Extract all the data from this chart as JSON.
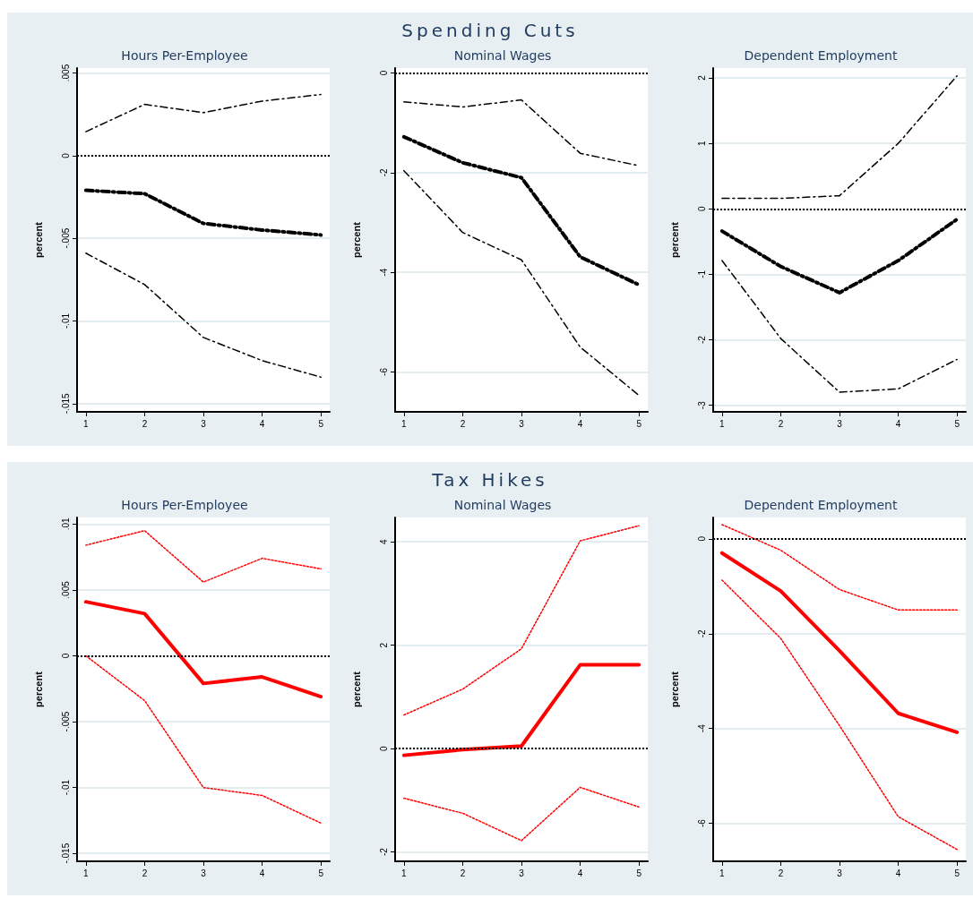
{
  "chart_data": [
    {
      "type": "line",
      "title": "Hours Per-Employee",
      "ylabel": "percent",
      "x": [
        1,
        2,
        3,
        4,
        5
      ],
      "xlim": [
        0.85,
        5.15
      ],
      "xticks": [
        1,
        2,
        3,
        4,
        5
      ],
      "ylim": [
        -0.0155,
        0.0053
      ],
      "yticks": [
        {
          "value": 0.005,
          "label": ".005"
        },
        0,
        {
          "value": -0.005,
          "label": "-.005"
        },
        {
          "value": -0.01,
          "label": "-.01"
        },
        {
          "value": -0.015,
          "label": "-.015"
        }
      ],
      "grid": "y",
      "marker": "none",
      "series": [
        {
          "color": "#000000",
          "line_style": "dashed",
          "values": [
            0.00145,
            0.0031,
            0.0026,
            0.0033,
            0.0037
          ]
        },
        {
          "color": "#000000",
          "line_style": "dashed",
          "values": [
            -0.0021,
            -0.0023,
            -0.0041,
            -0.0045,
            -0.0048
          ]
        },
        {
          "color": "#000000",
          "line_style": "dashed",
          "values": [
            -0.0059,
            -0.0078,
            -0.011,
            -0.0124,
            -0.0134
          ]
        }
      ],
      "ref_lines": [
        {
          "axis": "y",
          "value": 0,
          "color": "#000000",
          "line_style": "dotted"
        }
      ]
    },
    {
      "type": "line",
      "title": "Nominal Wages",
      "subtitle": "Spending Cuts",
      "ylabel": "percent",
      "x": [
        1,
        2,
        3,
        4,
        5
      ],
      "xlim": [
        0.85,
        5.15
      ],
      "xticks": [
        1,
        2,
        3,
        4,
        5
      ],
      "ylim": [
        -6.8,
        0.1
      ],
      "yticks": [
        0,
        -2,
        -4,
        -6
      ],
      "grid": "y",
      "marker": "none",
      "series": [
        {
          "color": "#000000",
          "line_style": "dashed",
          "values": [
            -0.58,
            -0.68,
            -0.54,
            -1.61,
            -1.86
          ]
        },
        {
          "color": "#000000",
          "line_style": "dashed",
          "values": [
            -1.28,
            -1.8,
            -2.1,
            -3.69,
            -4.25
          ]
        },
        {
          "color": "#000000",
          "line_style": "dashed",
          "values": [
            -1.96,
            -3.2,
            -3.75,
            -5.5,
            -6.47
          ]
        }
      ],
      "ref_lines": [
        {
          "axis": "y",
          "value": 0,
          "color": "#000000",
          "line_style": "dotted"
        }
      ]
    },
    {
      "type": "line",
      "title": "Dependent Employment",
      "ylabel": "percent",
      "x": [
        1,
        2,
        3,
        4,
        5
      ],
      "xlim": [
        0.85,
        5.15
      ],
      "xticks": [
        1,
        2,
        3,
        4,
        5
      ],
      "ylim": [
        -3.1,
        2.15
      ],
      "yticks": [
        2,
        1,
        0,
        -1,
        -2,
        -3
      ],
      "grid": "y",
      "marker": "none",
      "series": [
        {
          "color": "#000000",
          "line_style": "dashed",
          "values": [
            0.16,
            0.16,
            0.2,
            1.0,
            2.03
          ]
        },
        {
          "color": "#000000",
          "line_style": "dashed",
          "values": [
            -0.34,
            -0.88,
            -1.28,
            -0.79,
            -0.16
          ]
        },
        {
          "color": "#000000",
          "line_style": "dashed",
          "values": [
            -0.79,
            -1.98,
            -2.8,
            -2.75,
            -2.3
          ]
        }
      ],
      "ref_lines": [
        {
          "axis": "y",
          "value": 0,
          "color": "#000000",
          "line_style": "dotted"
        }
      ]
    },
    {
      "type": "line",
      "title": "Hours Per-Employee",
      "ylabel": "percent",
      "x": [
        1,
        2,
        3,
        4,
        5
      ],
      "xlim": [
        0.85,
        5.15
      ],
      "xticks": [
        1,
        2,
        3,
        4,
        5
      ],
      "ylim": [
        -0.0156,
        0.0105
      ],
      "yticks": [
        {
          "value": 0.01,
          "label": ".01"
        },
        {
          "value": 0.005,
          "label": ".005"
        },
        0,
        {
          "value": -0.005,
          "label": "-.005"
        },
        {
          "value": -0.01,
          "label": "-.01"
        },
        {
          "value": -0.015,
          "label": "-.015"
        }
      ],
      "grid": "y",
      "marker": "none",
      "series": [
        {
          "color": "#ff0000",
          "line_style": "dotted",
          "values": [
            0.0084,
            0.0095,
            0.0056,
            0.0074,
            0.0066
          ]
        },
        {
          "color": "#ff0000",
          "line_style": "solid",
          "values": [
            0.0041,
            0.0032,
            -0.0021,
            -0.0016,
            -0.0031
          ]
        },
        {
          "color": "#ff0000",
          "line_style": "dotted",
          "values": [
            0,
            -0.0034,
            -0.01,
            -0.0106,
            -0.0127
          ]
        }
      ],
      "ref_lines": [
        {
          "axis": "y",
          "value": 0,
          "color": "#000000",
          "line_style": "dotted"
        }
      ]
    },
    {
      "type": "line",
      "title": "Nominal Wages",
      "subtitle": "Tax Hikes",
      "ylabel": "percent",
      "x": [
        1,
        2,
        3,
        4,
        5
      ],
      "xlim": [
        0.85,
        5.15
      ],
      "xticks": [
        1,
        2,
        3,
        4,
        5
      ],
      "ylim": [
        -2.18,
        4.47
      ],
      "yticks": [
        4,
        2,
        0,
        -2
      ],
      "grid": "y",
      "marker": "none",
      "series": [
        {
          "color": "#ff0000",
          "line_style": "dotted",
          "values": [
            0.65,
            1.15,
            1.93,
            4.02,
            4.31
          ]
        },
        {
          "color": "#ff0000",
          "line_style": "solid",
          "values": [
            -0.13,
            -0.02,
            0.05,
            1.62,
            1.62
          ]
        },
        {
          "color": "#ff0000",
          "line_style": "dotted",
          "values": [
            -0.96,
            -1.25,
            -1.78,
            -0.75,
            -1.13
          ]
        }
      ],
      "ref_lines": [
        {
          "axis": "y",
          "value": 0,
          "color": "#000000",
          "line_style": "dotted"
        }
      ]
    },
    {
      "type": "line",
      "title": "Dependent Employment",
      "ylabel": "percent",
      "x": [
        1,
        2,
        3,
        4,
        5
      ],
      "xlim": [
        0.85,
        5.15
      ],
      "xticks": [
        1,
        2,
        3,
        4,
        5
      ],
      "ylim": [
        -6.8,
        0.45
      ],
      "yticks": [
        0,
        -2,
        -4,
        -6
      ],
      "grid": "y",
      "marker": "none",
      "series": [
        {
          "color": "#ff0000",
          "line_style": "dotted",
          "values": [
            0.3,
            -0.24,
            -1.07,
            -1.5,
            -1.5
          ]
        },
        {
          "color": "#ff0000",
          "line_style": "solid",
          "values": [
            -0.3,
            -1.1,
            -2.36,
            -3.68,
            -4.08
          ]
        },
        {
          "color": "#ff0000",
          "line_style": "dotted",
          "values": [
            -0.87,
            -2.1,
            -3.94,
            -5.86,
            -6.55
          ]
        }
      ],
      "ref_lines": [
        {
          "axis": "y",
          "value": 0,
          "color": "#000000",
          "line_style": "dotted"
        }
      ]
    }
  ]
}
